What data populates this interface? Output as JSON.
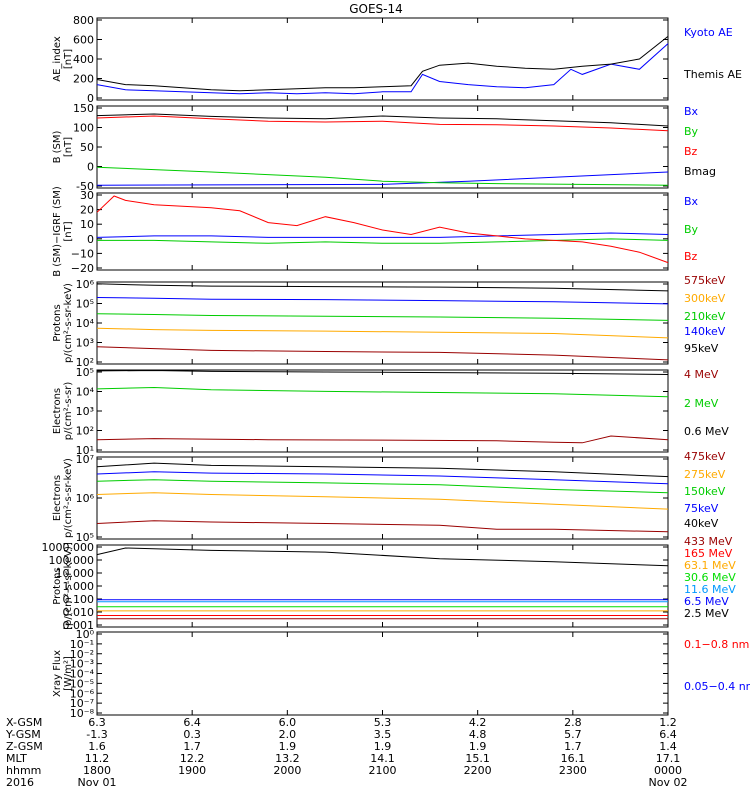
{
  "title": "GOES-14",
  "colors": {
    "black": "#000000",
    "blue": "#0000ff",
    "green": "#00cc00",
    "red": "#ff0000",
    "darkred": "#990000",
    "orange": "#ffaa00",
    "lightgreen": "#00dd00",
    "cyan": "#0099ff",
    "magenta": "#aa00aa",
    "darkgreen": "#008800"
  },
  "chart_data": [
    {
      "type": "line",
      "ylabel": "AE_index\n[nT]",
      "yticks": [
        "800",
        "600",
        "400",
        "200",
        "0"
      ],
      "ylim": [
        0,
        800
      ],
      "scale": "linear",
      "series": [
        {
          "name": "Kyoto AE",
          "color": "blue",
          "x": [
            0,
            5,
            10,
            15,
            20,
            25,
            30,
            35,
            40,
            45,
            50,
            55,
            57,
            60,
            65,
            70,
            75,
            80,
            83,
            85,
            90,
            95,
            100
          ],
          "y": [
            150,
            100,
            90,
            80,
            70,
            60,
            70,
            60,
            70,
            60,
            80,
            80,
            250,
            180,
            150,
            130,
            120,
            150,
            300,
            250,
            350,
            300,
            550
          ]
        },
        {
          "name": "Themis AE",
          "color": "black",
          "x": [
            0,
            5,
            10,
            15,
            20,
            25,
            30,
            35,
            40,
            45,
            50,
            55,
            57,
            60,
            65,
            70,
            75,
            80,
            85,
            90,
            95,
            100
          ],
          "y": [
            200,
            150,
            140,
            120,
            100,
            90,
            100,
            110,
            120,
            120,
            130,
            140,
            280,
            340,
            360,
            330,
            310,
            300,
            330,
            350,
            400,
            620
          ]
        }
      ]
    },
    {
      "type": "line",
      "ylabel": "B (SM)\n[nT]",
      "yticks": [
        "150",
        "100",
        "50",
        "0",
        "-50"
      ],
      "ylim": [
        -55,
        150
      ],
      "scale": "linear",
      "series": [
        {
          "name": "Bx",
          "color": "blue",
          "x": [
            0,
            50,
            65,
            100
          ],
          "y": [
            -48,
            -46,
            -38,
            -15
          ]
        },
        {
          "name": "By",
          "color": "green",
          "x": [
            0,
            20,
            40,
            50,
            60,
            70,
            100
          ],
          "y": [
            -3,
            -15,
            -28,
            -38,
            -42,
            -44,
            -48
          ]
        },
        {
          "name": "Bz",
          "color": "red",
          "x": [
            0,
            10,
            20,
            30,
            40,
            50,
            60,
            70,
            80,
            90,
            100
          ],
          "y": [
            120,
            125,
            118,
            112,
            110,
            112,
            104,
            103,
            100,
            95,
            88
          ]
        },
        {
          "name": "Bmag",
          "color": "black",
          "x": [
            0,
            10,
            20,
            30,
            40,
            50,
            60,
            70,
            80,
            90,
            100
          ],
          "y": [
            126,
            130,
            124,
            120,
            118,
            125,
            120,
            118,
            113,
            108,
            100
          ]
        }
      ]
    },
    {
      "type": "line",
      "ylabel": "B (SM)−IGRF (SM)\n[nT]",
      "yticks": [
        "30",
        "20",
        "10",
        "0",
        "−10",
        "−20"
      ],
      "ylim": [
        -22,
        30
      ],
      "scale": "linear",
      "series": [
        {
          "name": "Bx",
          "color": "blue",
          "x": [
            0,
            10,
            20,
            30,
            40,
            50,
            60,
            70,
            80,
            90,
            100
          ],
          "y": [
            0,
            1,
            1,
            0,
            0,
            0,
            0,
            1,
            2,
            3,
            2
          ]
        },
        {
          "name": "By",
          "color": "green",
          "x": [
            0,
            10,
            20,
            30,
            40,
            50,
            60,
            70,
            80,
            90,
            100
          ],
          "y": [
            -2,
            -2,
            -3,
            -4,
            -3,
            -4,
            -4,
            -3,
            -2,
            -1,
            -2
          ]
        },
        {
          "name": "Bz",
          "color": "red",
          "x": [
            0,
            3,
            5,
            10,
            15,
            20,
            25,
            30,
            35,
            40,
            45,
            50,
            55,
            60,
            65,
            70,
            75,
            80,
            85,
            90,
            95,
            100
          ],
          "y": [
            17,
            28,
            25,
            22,
            21,
            20,
            18,
            10,
            8,
            14,
            10,
            5,
            2,
            7,
            3,
            1,
            -1,
            -2,
            -3,
            -6,
            -10,
            -17
          ]
        }
      ]
    },
    {
      "type": "line",
      "ylabel": "Protons\np/(cm²-s-sr-keV)",
      "yticks": [
        "10⁶",
        "10⁵",
        "10⁴",
        "10³",
        "10²"
      ],
      "ylim": [
        60,
        1500000
      ],
      "scale": "log",
      "series": [
        {
          "name": "575keV",
          "color": "darkred",
          "x": [
            0,
            10,
            20,
            40,
            60,
            80,
            100
          ],
          "y": [
            500,
            400,
            320,
            280,
            250,
            180,
            100
          ]
        },
        {
          "name": "300keV",
          "color": "orange",
          "x": [
            0,
            10,
            20,
            40,
            60,
            80,
            100
          ],
          "y": [
            5000,
            4200,
            3800,
            3500,
            3000,
            2600,
            1500
          ]
        },
        {
          "name": "210keV",
          "color": "green",
          "x": [
            0,
            10,
            20,
            40,
            60,
            80,
            100
          ],
          "y": [
            30000,
            27000,
            24000,
            22000,
            20000,
            17000,
            13000
          ]
        },
        {
          "name": "140keV",
          "color": "blue",
          "x": [
            0,
            10,
            20,
            40,
            60,
            80,
            100
          ],
          "y": [
            220000,
            200000,
            180000,
            170000,
            150000,
            130000,
            100000
          ]
        },
        {
          "name": "95keV",
          "color": "black",
          "x": [
            0,
            10,
            20,
            40,
            60,
            80,
            100
          ],
          "y": [
            1200000,
            1000000,
            900000,
            850000,
            800000,
            700000,
            500000
          ]
        }
      ]
    },
    {
      "type": "line",
      "ylabel": "Electrons\np/(cm²-s-sr)",
      "yticks": [
        "10⁵",
        "10⁴",
        "10³",
        "10²",
        "10¹"
      ],
      "ylim": [
        10,
        100000
      ],
      "scale": "log",
      "series": [
        {
          "name": "4 MeV",
          "color": "darkred",
          "x": [
            0,
            10,
            30,
            50,
            70,
            80,
            85,
            90,
            100
          ],
          "y": [
            40,
            45,
            40,
            38,
            35,
            30,
            28,
            60,
            40
          ]
        },
        {
          "name": "2 MeV",
          "color": "green",
          "x": [
            0,
            10,
            20,
            40,
            60,
            80,
            100
          ],
          "y": [
            12000,
            14000,
            11000,
            9000,
            8000,
            7000,
            5000
          ]
        },
        {
          "name": "0.6 MeV",
          "color": "black",
          "x": [
            0,
            10,
            20,
            40,
            60,
            80,
            100
          ],
          "y": [
            90000,
            95000,
            85000,
            80000,
            75000,
            70000,
            60000
          ]
        }
      ]
    },
    {
      "type": "line",
      "ylabel": "Electrons\np/(cm²-s-sr-keV)",
      "yticks": [
        "10⁷",
        "10⁶",
        "10⁵"
      ],
      "ylim": [
        30000,
        10000000
      ],
      "scale": "log",
      "series": [
        {
          "name": "475keV",
          "color": "darkred",
          "x": [
            0,
            10,
            20,
            40,
            60,
            70,
            80,
            100
          ],
          "y": [
            90000,
            110000,
            100000,
            90000,
            80000,
            60000,
            60000,
            50000
          ]
        },
        {
          "name": "275keV",
          "color": "orange",
          "x": [
            0,
            10,
            20,
            40,
            60,
            80,
            100
          ],
          "y": [
            700000,
            800000,
            700000,
            600000,
            500000,
            350000,
            250000
          ]
        },
        {
          "name": "150keV",
          "color": "green",
          "x": [
            0,
            10,
            20,
            40,
            60,
            80,
            100
          ],
          "y": [
            1800000,
            2000000,
            1800000,
            1600000,
            1400000,
            1000000,
            800000
          ]
        },
        {
          "name": "75keV",
          "color": "blue",
          "x": [
            0,
            10,
            20,
            40,
            60,
            80,
            100
          ],
          "y": [
            3000000,
            3500000,
            3200000,
            3000000,
            2600000,
            2000000,
            1500000
          ]
        },
        {
          "name": "40keV",
          "color": "black",
          "x": [
            0,
            10,
            20,
            40,
            60,
            80,
            100
          ],
          "y": [
            5000000,
            6500000,
            5500000,
            5000000,
            4500000,
            3500000,
            2500000
          ]
        }
      ]
    },
    {
      "type": "line",
      "ylabel": "Protons\n[p/(cm²-s-sr-keV)]",
      "yticks": [
        "1000.000",
        "100.000",
        "10.000",
        "1.000",
        "0.100",
        "0.010",
        "0.001"
      ],
      "ylim": [
        0.001,
        1000
      ],
      "scale": "log",
      "series": [
        {
          "name": "433 MeV",
          "color": "darkred",
          "x": [
            0,
            50,
            100
          ],
          "y": [
            0.004,
            0.004,
            0.004
          ]
        },
        {
          "name": "165 MeV",
          "color": "red",
          "x": [
            0,
            50,
            100
          ],
          "y": [
            0.007,
            0.007,
            0.007
          ]
        },
        {
          "name": "63.1 MeV",
          "color": "orange",
          "x": [
            0,
            50,
            100
          ],
          "y": [
            0.015,
            0.015,
            0.015
          ]
        },
        {
          "name": "30.6 MeV",
          "color": "lightgreen",
          "x": [
            0,
            50,
            100
          ],
          "y": [
            0.03,
            0.03,
            0.03
          ]
        },
        {
          "name": "11.6 MeV",
          "color": "cyan",
          "x": [
            0,
            50,
            100
          ],
          "y": [
            0.07,
            0.07,
            0.07
          ]
        },
        {
          "name": "6.5 MeV",
          "color": "blue",
          "x": [
            0,
            50,
            100
          ],
          "y": [
            0.1,
            0.1,
            0.1
          ]
        },
        {
          "name": "2.5 MeV",
          "color": "black",
          "x": [
            0,
            5,
            20,
            40,
            60,
            80,
            100
          ],
          "y": [
            200,
            600,
            400,
            300,
            100,
            60,
            30
          ]
        }
      ]
    },
    {
      "type": "line",
      "ylabel": "Xray Flux\n[W/m²]",
      "yticks": [
        "10⁰",
        "10⁻¹",
        "10⁻²",
        "10⁻³",
        "10⁻⁴",
        "10⁻⁵",
        "10⁻⁶",
        "10⁻⁷",
        "10⁻⁸"
      ],
      "ylim": [
        1e-08,
        1
      ],
      "scale": "log",
      "series": [
        {
          "name": "0.1−0.8 nm",
          "color": "red",
          "x": [],
          "y": []
        },
        {
          "name": "0.05−0.4 nm",
          "color": "blue",
          "x": [],
          "y": []
        }
      ]
    }
  ],
  "ephemeris": {
    "labels": [
      "X-GSM",
      "Y-GSM",
      "Z-GSM",
      "MLT",
      "hhmm",
      "2016"
    ],
    "columns": [
      [
        "6.3",
        "-1.3",
        "1.6",
        "11.2",
        "1800",
        "Nov 01"
      ],
      [
        "6.4",
        "0.3",
        "1.7",
        "12.2",
        "1900",
        ""
      ],
      [
        "6.0",
        "2.0",
        "1.9",
        "13.2",
        "2000",
        ""
      ],
      [
        "5.3",
        "3.5",
        "1.9",
        "14.1",
        "2100",
        ""
      ],
      [
        "4.2",
        "4.8",
        "1.9",
        "15.1",
        "2200",
        ""
      ],
      [
        "2.8",
        "5.7",
        "1.7",
        "16.1",
        "2300",
        ""
      ],
      [
        "1.2",
        "6.4",
        "1.4",
        "17.1",
        "0000",
        "Nov 02"
      ]
    ]
  }
}
